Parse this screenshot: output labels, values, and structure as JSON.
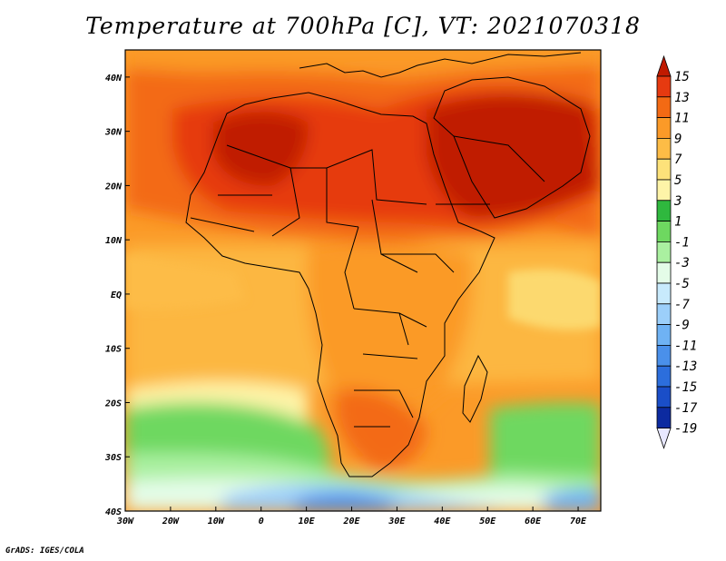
{
  "title": "Temperature at 700hPa [C], VT: 2021070318",
  "credit": "GrADS: IGES/COLA",
  "map": {
    "lon_range": [
      -30,
      75
    ],
    "lat_range": [
      -40,
      45
    ],
    "lon_ticks": [
      {
        "value": -30,
        "label": "30W"
      },
      {
        "value": -20,
        "label": "20W"
      },
      {
        "value": -10,
        "label": "10W"
      },
      {
        "value": 0,
        "label": "0"
      },
      {
        "value": 10,
        "label": "10E"
      },
      {
        "value": 20,
        "label": "20E"
      },
      {
        "value": 30,
        "label": "30E"
      },
      {
        "value": 40,
        "label": "40E"
      },
      {
        "value": 50,
        "label": "50E"
      },
      {
        "value": 60,
        "label": "60E"
      },
      {
        "value": 70,
        "label": "70E"
      }
    ],
    "lat_ticks": [
      {
        "value": 40,
        "label": "40N"
      },
      {
        "value": 30,
        "label": "30N"
      },
      {
        "value": 20,
        "label": "20N"
      },
      {
        "value": 10,
        "label": "10N"
      },
      {
        "value": 0,
        "label": "EQ"
      },
      {
        "value": -10,
        "label": "10S"
      },
      {
        "value": -20,
        "label": "20S"
      },
      {
        "value": -30,
        "label": "30S"
      },
      {
        "value": -40,
        "label": "40S"
      }
    ]
  },
  "colorbar": {
    "levels": [
      "15",
      "13",
      "11",
      "9",
      "7",
      "5",
      "3",
      "1",
      "-1",
      "-3",
      "-5",
      "-7",
      "-9",
      "-11",
      "-13",
      "-15",
      "-17",
      "-19"
    ],
    "colors": [
      "#c01a00",
      "#e63a10",
      "#f36a14",
      "#fb9a28",
      "#fdbc46",
      "#fde27a",
      "#fef4a8",
      "#2fb83e",
      "#6ed860",
      "#aaf0a0",
      "#e4fce8",
      "#c8eafc",
      "#9ccffa",
      "#6fb2f4",
      "#4a90ea",
      "#2c6edc",
      "#1a4ec8",
      "#0c2aa0",
      "#000a6e"
    ]
  }
}
